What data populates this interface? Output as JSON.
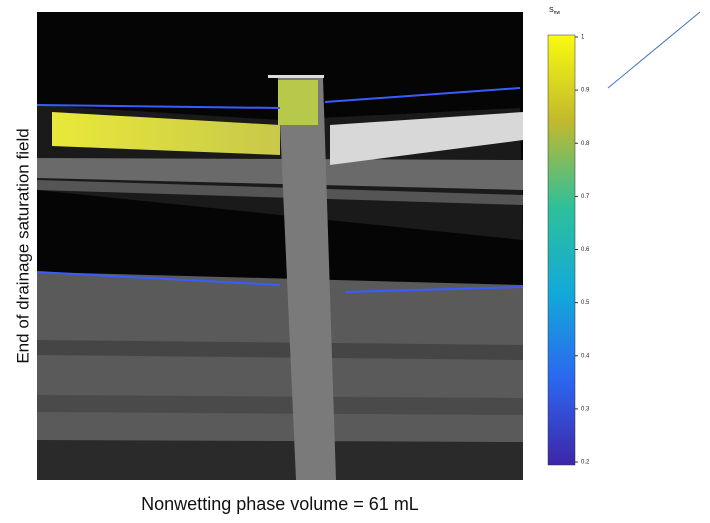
{
  "figure": {
    "y_label": "End of drainage saturation field",
    "caption": "Nonwetting phase volume = 61 mL",
    "colorbar": {
      "label": "S",
      "subscript": "nw",
      "ticks": [
        1,
        0.9,
        0.8,
        0.7,
        0.6,
        0.5,
        0.4,
        0.3,
        0.2
      ]
    }
  }
}
